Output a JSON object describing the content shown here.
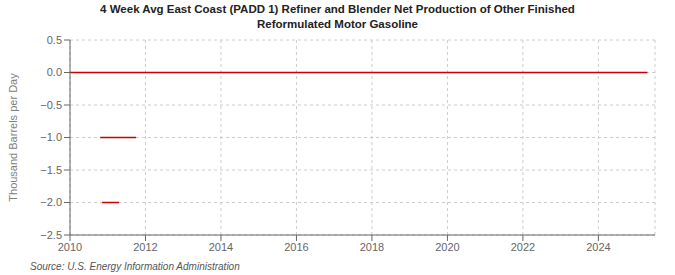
{
  "chart_data": {
    "type": "line",
    "title": "4 Week Avg East Coast (PADD 1) Refiner and Blender Net Production of Other Finished\nReformulated Motor Gasoline",
    "y_label": "Thousand Barrels per Day",
    "annotations": [
      "Source: U.S. Energy Information Administration"
    ],
    "xlim": [
      2010,
      2025.5
    ],
    "ylim": [
      -2.5,
      0.5
    ],
    "xticks": [
      2010,
      2012,
      2014,
      2016,
      2018,
      2020,
      2022,
      2024
    ],
    "yticks": [
      0.5,
      {
        "value": 0.0,
        "label": "0.0"
      },
      {
        "value": -0.5,
        "label": "−0.5"
      },
      {
        "value": -1.0,
        "label": "−1.0"
      },
      {
        "value": -1.5,
        "label": "−1.5"
      },
      {
        "value": -2.0,
        "label": "−2.0"
      },
      {
        "value": -2.5,
        "label": "−2.5"
      }
    ],
    "grid": true,
    "series": [
      {
        "color": "#cc0000",
        "x": [
          2010.0,
          2010.05,
          2010.1,
          2010.15,
          2010.2,
          2010.25,
          2010.3,
          2010.35,
          2010.4,
          2010.45,
          2010.5,
          2010.55,
          2010.6,
          2010.65,
          2010.7,
          2010.75,
          2010.8,
          2010.85,
          2010.9,
          2010.95,
          2011.0,
          2011.05,
          2011.1,
          2011.15,
          2011.2,
          2011.25,
          2011.3,
          2011.35,
          2011.4,
          2011.45,
          2011.5,
          2011.55,
          2011.6,
          2011.65,
          2011.7,
          2011.75,
          2011.8,
          2011.85,
          2011.9,
          2011.95,
          2012.0,
          2012.1,
          2012.2,
          2012.3,
          2012.4,
          2012.5,
          2013.0,
          2013.5,
          2014.0,
          2014.5,
          2015.0,
          2015.5,
          2016.0,
          2016.5,
          2017.0,
          2017.5,
          2018.0,
          2018.5,
          2019.0,
          2019.5,
          2020.0,
          2020.5,
          2021.0,
          2021.5,
          2022.0,
          2022.5,
          2023.0,
          2023.5,
          2024.0,
          2024.5,
          2025.0,
          2025.3
        ],
        "values": [
          0.0,
          0.0,
          0.0,
          0.0,
          0.0,
          0.0,
          0.0,
          0.0,
          0.0,
          0.0,
          0.0,
          0.0,
          0.0,
          0.0,
          0.0,
          0.0,
          0.0,
          0.0,
          0.0,
          0.0,
          0.0,
          0.0,
          0.0,
          0.0,
          0.0,
          0.0,
          0.0,
          0.0,
          0.0,
          0.0,
          0.0,
          0.0,
          0.0,
          0.0,
          0.0,
          0.0,
          0.0,
          0.0,
          0.0,
          0.0,
          0.0,
          0.0,
          0.0,
          0.0,
          0.0,
          0.0,
          0.0,
          0.0,
          0.0,
          0.0,
          0.0,
          0.0,
          0.0,
          0.0,
          0.0,
          0.0,
          0.0,
          0.0,
          0.0,
          0.0,
          0.0,
          0.0,
          0.0,
          0.0,
          0.0,
          0.0,
          0.0,
          0.0,
          0.0,
          0.0,
          0.0,
          0.0
        ]
      },
      {
        "color": "#cc0000",
        "x": [
          2010.8,
          2010.9,
          2011.0,
          2011.05,
          2011.1,
          2011.15,
          2011.2,
          2011.3,
          2011.35,
          2011.5,
          2011.55,
          2011.6,
          2011.65,
          2011.7,
          2011.75
        ],
        "values": [
          -1.0,
          -1.0,
          -1.0,
          -1.0,
          -1.0,
          -1.0,
          -1.0,
          -1.0,
          -1.0,
          -1.0,
          -1.0,
          -1.0,
          -1.0,
          -1.0,
          -1.0
        ]
      },
      {
        "color": "#cc0000",
        "x": [
          2010.85,
          2010.9,
          2010.95,
          2011.0,
          2011.05,
          2011.1,
          2011.15,
          2011.2,
          2011.25,
          2011.3
        ],
        "values": [
          -2.0,
          -2.0,
          -2.0,
          -2.0,
          -2.0,
          -2.0,
          -2.0,
          -2.0,
          -2.0,
          -2.0
        ]
      }
    ]
  }
}
